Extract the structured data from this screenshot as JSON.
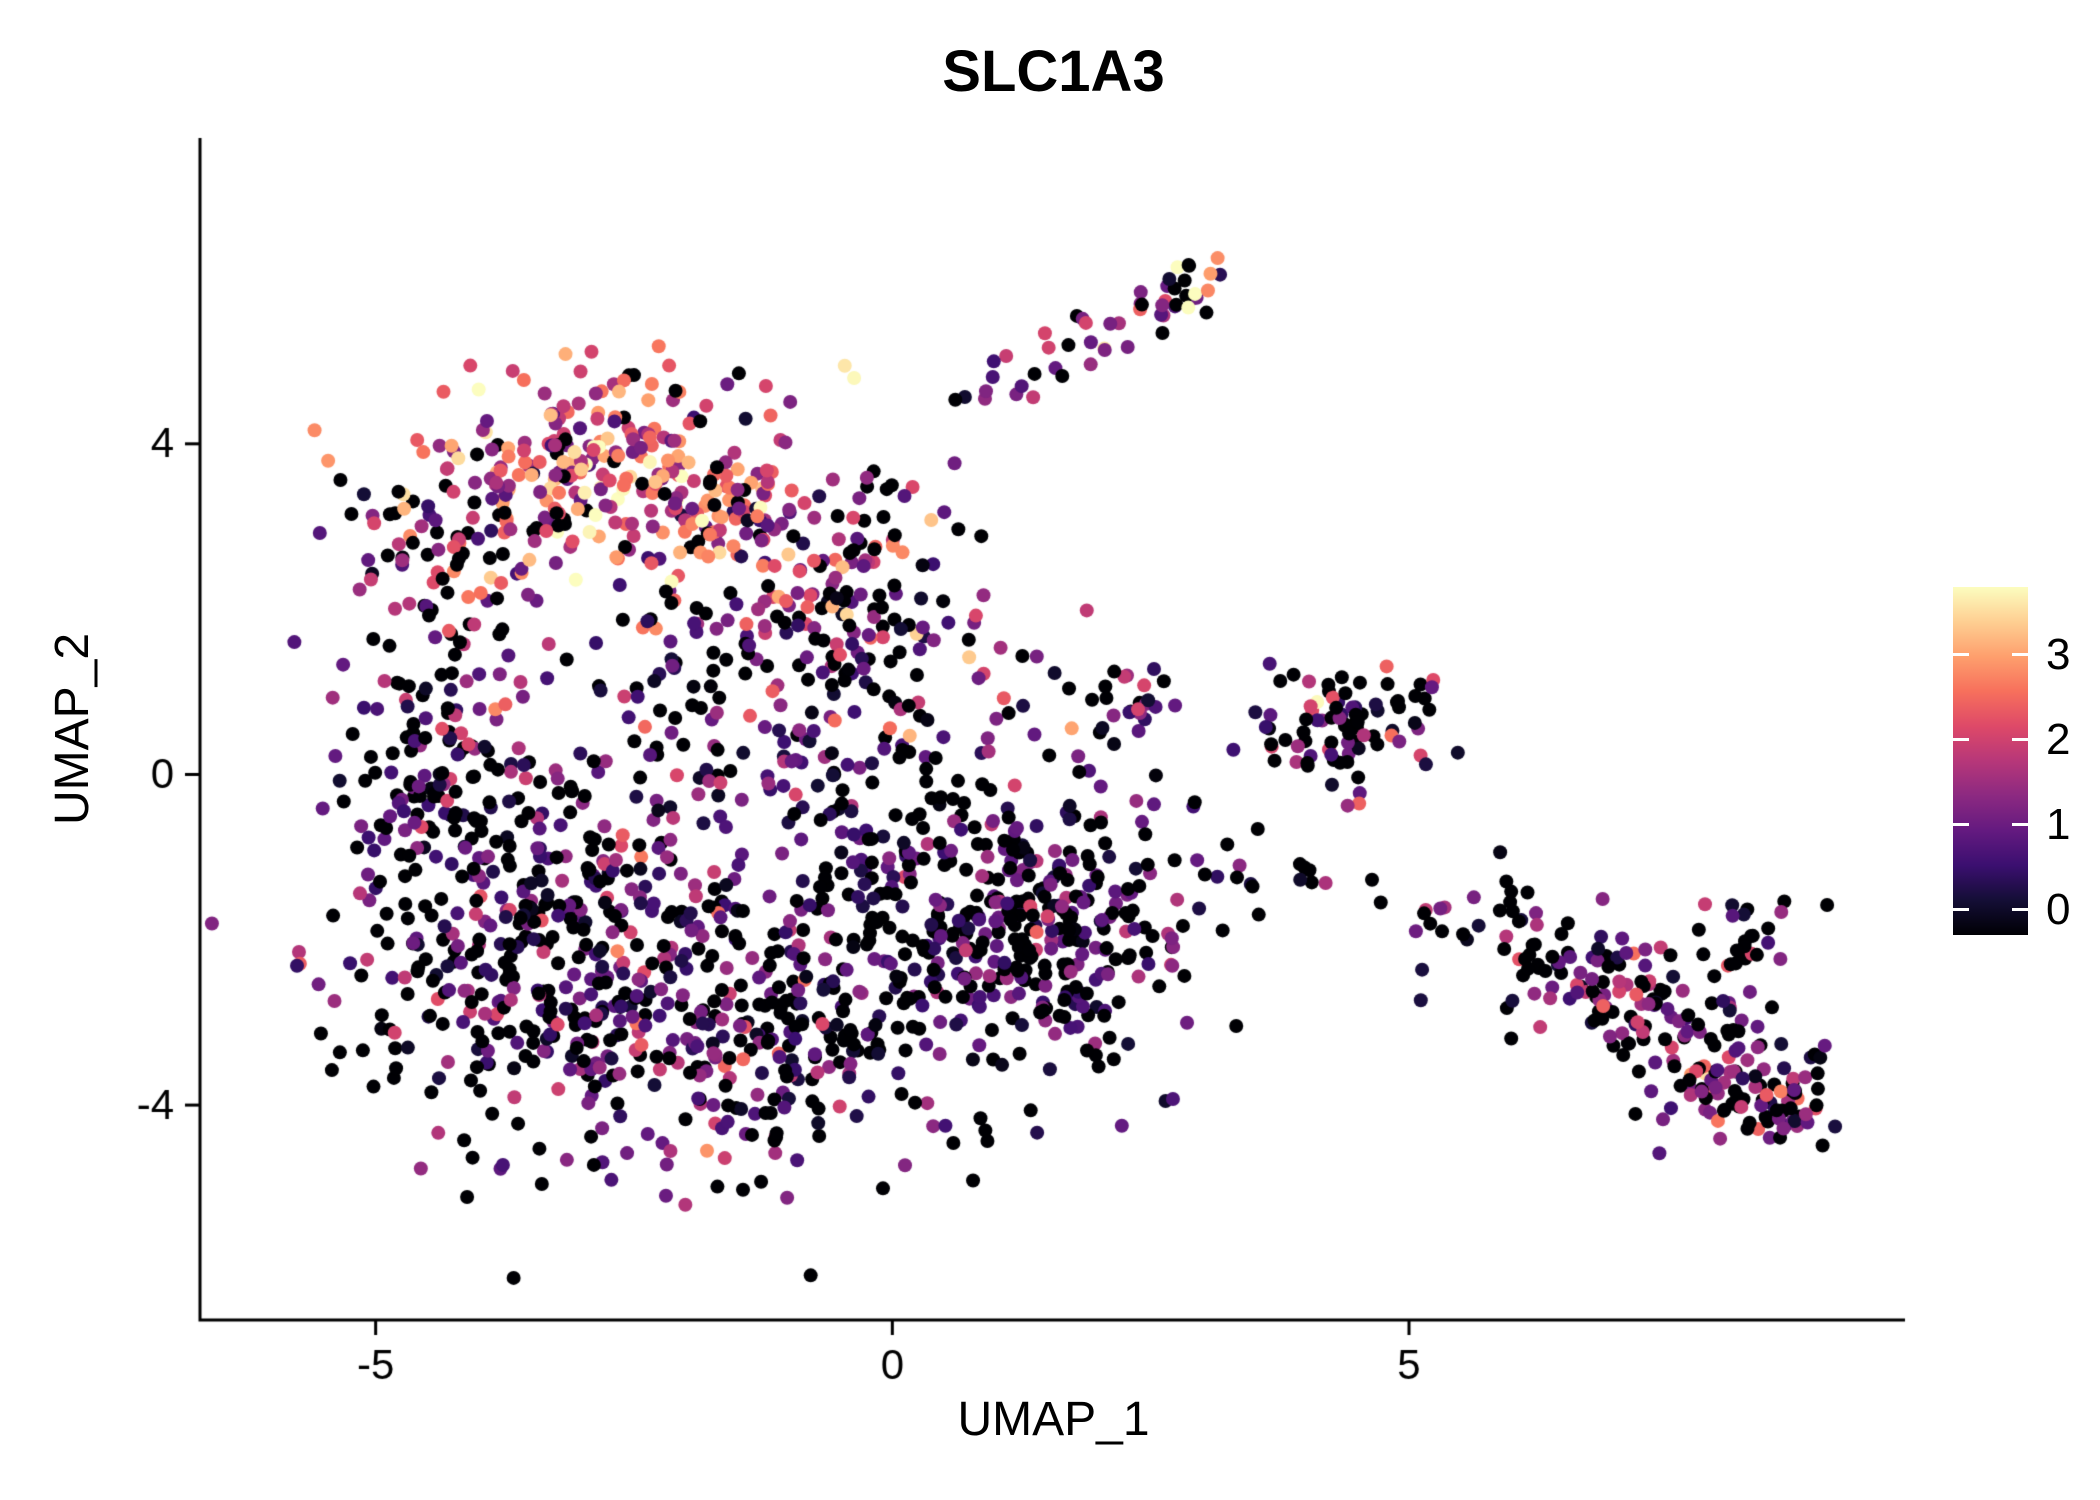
{
  "chart_data": {
    "type": "scatter",
    "title": "SLC1A3",
    "xlabel": "UMAP_1",
    "ylabel": "UMAP_2",
    "x_ticks": [
      -5,
      0,
      5
    ],
    "y_ticks": [
      -4,
      0,
      4
    ],
    "x_range": [
      -6.7,
      9.8
    ],
    "y_range": [
      -6.6,
      7.7
    ],
    "grid": false,
    "background": "#ffffff",
    "axis_color": "#000000",
    "point_radius": 7,
    "seed": 42,
    "value_domain": [
      0,
      3.5
    ],
    "legend": {
      "type": "colorbar",
      "position": "right",
      "ticks": [
        0,
        1,
        2,
        3
      ],
      "tick_domain": [
        -0.3,
        3.8
      ]
    },
    "colormap": {
      "name": "magma",
      "stops": [
        {
          "t": 0.0,
          "color": "#000004"
        },
        {
          "t": 0.1,
          "color": "#140e36"
        },
        {
          "t": 0.2,
          "color": "#3b0f70"
        },
        {
          "t": 0.3,
          "color": "#641a80"
        },
        {
          "t": 0.4,
          "color": "#8c2981"
        },
        {
          "t": 0.5,
          "color": "#b73779"
        },
        {
          "t": 0.6,
          "color": "#de4968"
        },
        {
          "t": 0.7,
          "color": "#f7705c"
        },
        {
          "t": 0.8,
          "color": "#fe9f6d"
        },
        {
          "t": 0.9,
          "color": "#fecf92"
        },
        {
          "t": 1.0,
          "color": "#fcfdbf"
        }
      ]
    },
    "clusters": [
      {
        "name": "topleft-core",
        "n": 300,
        "cx": -2.55,
        "cy": 3.55,
        "sx": 1.05,
        "sy": 0.7,
        "zero_frac": 0.1,
        "mean": 2.1,
        "sd": 0.8
      },
      {
        "name": "topleft-west",
        "n": 70,
        "cx": -4.35,
        "cy": 2.95,
        "sx": 0.45,
        "sy": 0.55,
        "zero_frac": 0.25,
        "mean": 1.6,
        "sd": 0.9
      },
      {
        "name": "upper-mid",
        "n": 160,
        "cx": -0.7,
        "cy": 2.1,
        "sx": 0.9,
        "sy": 0.75,
        "zero_frac": 0.25,
        "mean": 1.4,
        "sd": 0.9
      },
      {
        "name": "blob-left",
        "n": 320,
        "cx": -3.6,
        "cy": -1.9,
        "sx": 0.95,
        "sy": 1.15,
        "zero_frac": 0.45,
        "mean": 0.9,
        "sd": 0.6
      },
      {
        "name": "blob-center",
        "n": 330,
        "cx": -1.6,
        "cy": -2.9,
        "sx": 1.05,
        "sy": 1.05,
        "zero_frac": 0.35,
        "mean": 1.0,
        "sd": 0.65
      },
      {
        "name": "blob-right",
        "n": 290,
        "cx": 0.7,
        "cy": -1.9,
        "sx": 1.05,
        "sy": 1.0,
        "zero_frac": 0.5,
        "mean": 0.8,
        "sd": 0.55
      },
      {
        "name": "blob-right-dense",
        "n": 150,
        "cx": 1.85,
        "cy": -1.7,
        "sx": 0.65,
        "sy": 0.75,
        "zero_frac": 0.3,
        "mean": 1.0,
        "sd": 0.5
      },
      {
        "name": "left-column",
        "n": 110,
        "cx": -4.25,
        "cy": 0.2,
        "sx": 0.55,
        "sy": 0.9,
        "zero_frac": 0.35,
        "mean": 1.0,
        "sd": 0.7
      },
      {
        "name": "center-mid",
        "n": 130,
        "cx": -0.6,
        "cy": 0.2,
        "sx": 1.15,
        "sy": 0.8,
        "zero_frac": 0.35,
        "mean": 0.9,
        "sd": 0.7
      },
      {
        "name": "between-sparse",
        "n": 40,
        "cx": -2.6,
        "cy": 1.2,
        "sx": 1.3,
        "sy": 0.5,
        "zero_frac": 0.3,
        "mean": 1.2,
        "sd": 0.8
      },
      {
        "name": "top-small",
        "n": 26,
        "cx": 2.8,
        "cy": 5.85,
        "sx": 0.2,
        "sy": 0.18,
        "zero_frac": 0.2,
        "mean": 1.5,
        "sd": 0.9
      },
      {
        "name": "trail-diagonal",
        "n": 28,
        "line": [
          0.5,
          4.5,
          2.55,
          5.5
        ],
        "jitter": 0.18,
        "zero_frac": 0.15,
        "mean": 1.6,
        "sd": 0.8
      },
      {
        "name": "right-mid",
        "n": 85,
        "cx": 4.35,
        "cy": 0.65,
        "sx": 0.45,
        "sy": 0.38,
        "zero_frac": 0.3,
        "mean": 1.2,
        "sd": 0.8
      },
      {
        "name": "right-mid-satellite",
        "n": 22,
        "cx": 2.35,
        "cy": 0.9,
        "sx": 0.3,
        "sy": 0.25,
        "zero_frac": 0.35,
        "mean": 0.9,
        "sd": 0.6
      },
      {
        "name": "trail-right",
        "n": 16,
        "line": [
          3.3,
          -1.15,
          5.5,
          -1.6
        ],
        "jitter": 0.18,
        "zero_frac": 0.3,
        "mean": 1.2,
        "sd": 0.9
      },
      {
        "name": "bottomright-band",
        "n": 200,
        "line": [
          5.8,
          -1.7,
          8.6,
          -4.0
        ],
        "jitter": 0.42,
        "zero_frac": 0.4,
        "mean": 1.0,
        "sd": 0.7
      },
      {
        "name": "bottomright-tip",
        "n": 45,
        "cx": 8.45,
        "cy": -3.95,
        "sx": 0.33,
        "sy": 0.28,
        "zero_frac": 0.25,
        "mean": 1.4,
        "sd": 1.0
      },
      {
        "name": "bottomright-top",
        "n": 26,
        "cx": 8.3,
        "cy": -2.0,
        "sx": 0.3,
        "sy": 0.33,
        "zero_frac": 0.35,
        "mean": 1.0,
        "sd": 0.8
      }
    ]
  }
}
